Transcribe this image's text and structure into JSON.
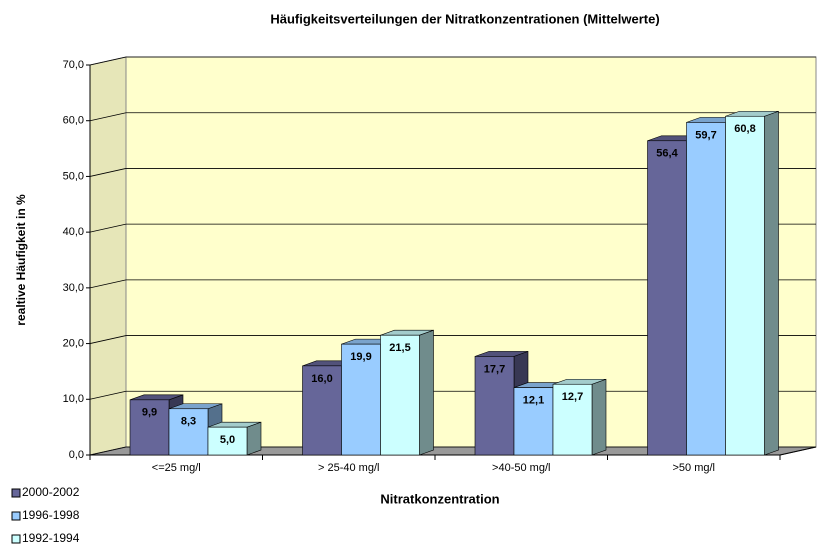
{
  "chart_data": {
    "type": "bar3d",
    "title": "Häufigkeitsverteilungen der Nitratkonzentrationen (Mittelwerte)",
    "x_label": "Nitratkonzentration",
    "y_label": "realtive Häufigkeit in %",
    "categories": [
      "<=25 mg/l",
      "> 25-40 mg/l",
      ">40-50 mg/l",
      ">50 mg/l"
    ],
    "series": [
      {
        "name": "2000-2002",
        "color": "#666699",
        "values": [
          9.9,
          16.0,
          17.7,
          56.4
        ],
        "value_labels": [
          "9,9",
          "16,0",
          "17,7",
          "56,4"
        ]
      },
      {
        "name": "1996-1998",
        "color": "#99ccff",
        "values": [
          8.3,
          19.9,
          12.1,
          59.7
        ],
        "value_labels": [
          "8,3",
          "19,9",
          "12,1",
          "59,7"
        ]
      },
      {
        "name": "1992-1994",
        "color": "#ccffff",
        "values": [
          5.0,
          21.5,
          12.7,
          60.8
        ],
        "value_labels": [
          "5,0",
          "21,5",
          "12,7",
          "60,8"
        ]
      }
    ],
    "ylim": [
      0,
      70
    ],
    "yticks": [
      {
        "value": 0,
        "label": "0,0"
      },
      {
        "value": 10,
        "label": "10,0"
      },
      {
        "value": 20,
        "label": "20,0"
      },
      {
        "value": 30,
        "label": "30,0"
      },
      {
        "value": 40,
        "label": "40,0"
      },
      {
        "value": 50,
        "label": "50,0"
      },
      {
        "value": 60,
        "label": "60,0"
      },
      {
        "value": 70,
        "label": "70,0"
      }
    ],
    "grid": true,
    "legend": "bottom-left"
  }
}
